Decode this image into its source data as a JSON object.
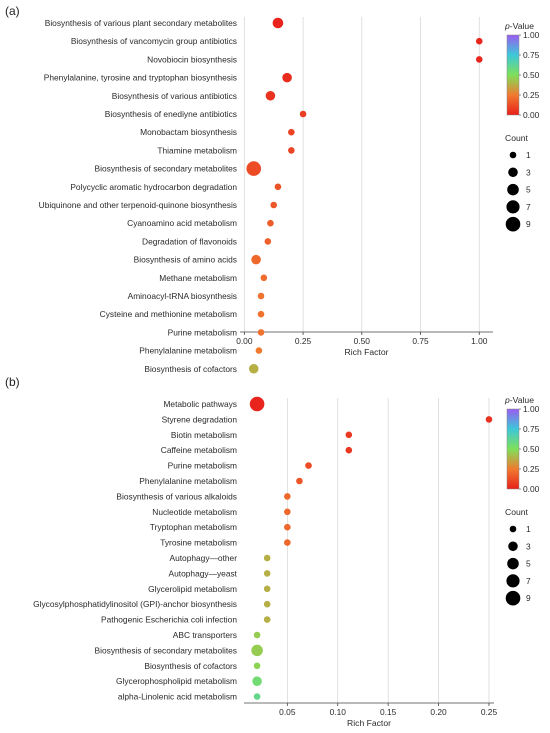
{
  "chart_data": [
    {
      "type": "scatter",
      "panel_label": "(a)",
      "xlabel": "Rich Factor",
      "xlim": [
        -0.01,
        1.05
      ],
      "xticks": [
        0.0,
        0.25,
        0.5,
        0.75,
        1.0
      ],
      "xtick_labels": [
        "0.00",
        "0.25",
        "0.50",
        "0.75",
        "1.00"
      ],
      "grid": "vertical",
      "colorbar": {
        "title_italic": "p",
        "title_rest": "-Value",
        "range": [
          0,
          1
        ],
        "ticks": [
          "0.00",
          "0.25",
          "0.50",
          "0.75",
          "1.00"
        ],
        "colors": [
          "#e8201c",
          "#f07a30",
          "#7fe05a",
          "#3cc8d8",
          "#9a5cf0"
        ]
      },
      "size_legend": {
        "title": "Count",
        "values": [
          1,
          3,
          5,
          7,
          9
        ]
      },
      "points": [
        {
          "term": "Biosynthesis of various plant secondary metabolites",
          "rich": 0.143,
          "count": 4,
          "p": 0.01
        },
        {
          "term": "Biosynthesis of vancomycin group antibiotics",
          "rich": 1.0,
          "count": 1,
          "p": 0.02
        },
        {
          "term": "Novobiocin biosynthesis",
          "rich": 1.0,
          "count": 1,
          "p": 0.02
        },
        {
          "term": "Phenylalanine, tyrosine and tryptophan biosynthesis",
          "rich": 0.182,
          "count": 3,
          "p": 0.03
        },
        {
          "term": "Biosynthesis of various antibiotics",
          "rich": 0.111,
          "count": 3,
          "p": 0.05
        },
        {
          "term": "Biosynthesis of enediyne antibiotics",
          "rich": 0.25,
          "count": 1,
          "p": 0.08
        },
        {
          "term": "Monobactam biosynthesis",
          "rich": 0.2,
          "count": 1,
          "p": 0.1
        },
        {
          "term": "Thiamine metabolism",
          "rich": 0.2,
          "count": 1,
          "p": 0.1
        },
        {
          "term": "Biosynthesis of secondary metabolites",
          "rich": 0.04,
          "count": 9,
          "p": 0.12
        },
        {
          "term": "Polycyclic aromatic hydrocarbon degradation",
          "rich": 0.143,
          "count": 1,
          "p": 0.14
        },
        {
          "term": "Ubiquinone and other terpenoid-quinone biosynthesis",
          "rich": 0.125,
          "count": 1,
          "p": 0.15
        },
        {
          "term": "Cyanoamino acid metabolism",
          "rich": 0.111,
          "count": 1,
          "p": 0.17
        },
        {
          "term": "Degradation of flavonoids",
          "rich": 0.1,
          "count": 1,
          "p": 0.18
        },
        {
          "term": "Biosynthesis of amino acids",
          "rich": 0.05,
          "count": 3,
          "p": 0.2
        },
        {
          "term": "Methane metabolism",
          "rich": 0.083,
          "count": 1,
          "p": 0.21
        },
        {
          "term": "Aminoacyl-tRNA biosynthesis",
          "rich": 0.071,
          "count": 1,
          "p": 0.23
        },
        {
          "term": "Cysteine and methionine metabolism",
          "rich": 0.071,
          "count": 1,
          "p": 0.23
        },
        {
          "term": "Purine metabolism",
          "rich": 0.071,
          "count": 1,
          "p": 0.23
        },
        {
          "term": "Phenylalanine metabolism",
          "rich": 0.062,
          "count": 1,
          "p": 0.25
        },
        {
          "term": "Biosynthesis of cofactors",
          "rich": 0.04,
          "count": 3,
          "p": 0.38
        }
      ]
    },
    {
      "type": "scatter",
      "panel_label": "(b)",
      "xlabel": "Rich Factor",
      "xlim": [
        0.009,
        0.253
      ],
      "xticks": [
        0.05,
        0.1,
        0.15,
        0.2,
        0.25
      ],
      "xtick_labels": [
        "0.05",
        "0.10",
        "0.15",
        "0.20",
        "0.25"
      ],
      "grid": "vertical",
      "colorbar": {
        "title_italic": "p",
        "title_rest": "-Value",
        "range": [
          0,
          1
        ],
        "ticks": [
          "0.00",
          "0.25",
          "0.50",
          "0.75",
          "1.00"
        ],
        "colors": [
          "#e8201c",
          "#f07a30",
          "#7fe05a",
          "#3cc8d8",
          "#9a5cf0"
        ]
      },
      "size_legend": {
        "title": "Count",
        "values": [
          1,
          3,
          5,
          7,
          9
        ]
      },
      "points": [
        {
          "term": "Metabolic pathways",
          "rich": 0.02,
          "count": 9,
          "p": 0.01
        },
        {
          "term": "Styrene degradation",
          "rich": 0.25,
          "count": 1,
          "p": 0.05
        },
        {
          "term": "Biotin metabolism",
          "rich": 0.111,
          "count": 1,
          "p": 0.07
        },
        {
          "term": "Caffeine metabolism",
          "rich": 0.111,
          "count": 1,
          "p": 0.07
        },
        {
          "term": "Purine metabolism",
          "rich": 0.071,
          "count": 1,
          "p": 0.12
        },
        {
          "term": "Phenylalanine metabolism",
          "rich": 0.062,
          "count": 1,
          "p": 0.15
        },
        {
          "term": "Biosynthesis of various alkaloids",
          "rich": 0.05,
          "count": 1,
          "p": 0.2
        },
        {
          "term": "Nucleotide metabolism",
          "rich": 0.05,
          "count": 1,
          "p": 0.2
        },
        {
          "term": "Tryptophan metabolism",
          "rich": 0.05,
          "count": 1,
          "p": 0.2
        },
        {
          "term": "Tyrosine metabolism",
          "rich": 0.05,
          "count": 1,
          "p": 0.2
        },
        {
          "term": "Autophagy—other",
          "rich": 0.03,
          "count": 1,
          "p": 0.38
        },
        {
          "term": "Autophagy—yeast",
          "rich": 0.03,
          "count": 1,
          "p": 0.38
        },
        {
          "term": "Glycerolipid metabolism",
          "rich": 0.03,
          "count": 1,
          "p": 0.38
        },
        {
          "term": "Glycosylphosphatidylinositol (GPI)-anchor biosynthesis",
          "rich": 0.03,
          "count": 1,
          "p": 0.38
        },
        {
          "term": "Pathogenic Escherichia coli infection",
          "rich": 0.03,
          "count": 1,
          "p": 0.38
        },
        {
          "term": "ABC transporters",
          "rich": 0.02,
          "count": 1,
          "p": 0.45
        },
        {
          "term": "Biosynthesis of secondary metabolites",
          "rich": 0.02,
          "count": 5,
          "p": 0.45
        },
        {
          "term": "Biosynthesis of cofactors",
          "rich": 0.02,
          "count": 1,
          "p": 0.47
        },
        {
          "term": "Glycerophospholipid metabolism",
          "rich": 0.02,
          "count": 3,
          "p": 0.55
        },
        {
          "term": "alpha-Linolenic acid metabolism",
          "rich": 0.02,
          "count": 1,
          "p": 0.6
        }
      ]
    }
  ]
}
